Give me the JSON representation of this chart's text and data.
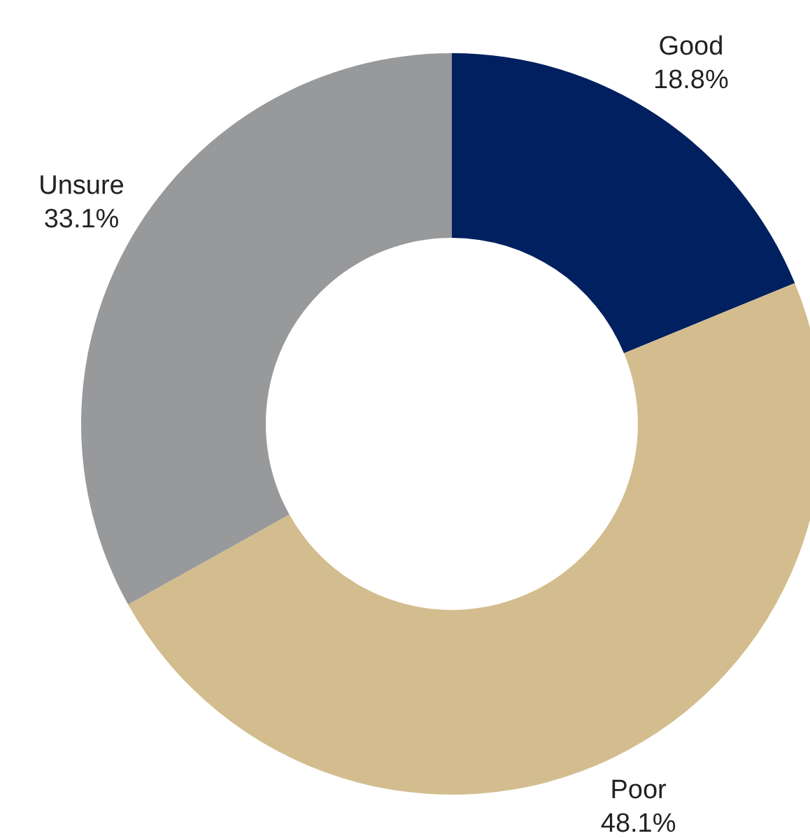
{
  "chart_data": {
    "type": "donut",
    "categories": [
      "Good",
      "Poor",
      "Unsure"
    ],
    "values": [
      18.8,
      48.1,
      33.1
    ],
    "colors": [
      "#002060",
      "#d3bd8e",
      "#98999b"
    ],
    "value_labels": [
      "18.8%",
      "48.1%",
      "33.1%"
    ],
    "legend": false
  }
}
